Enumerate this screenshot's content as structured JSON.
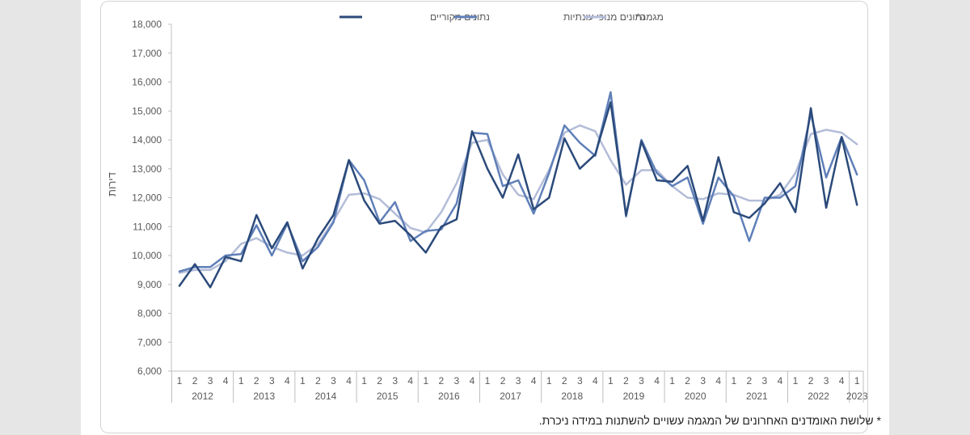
{
  "chart_data": {
    "type": "line",
    "ylabel": "דירות",
    "ylim": [
      6000,
      18000
    ],
    "yticks": [
      "6,000",
      "7,000",
      "8,000",
      "9,000",
      "10,000",
      "11,000",
      "12,000",
      "13,000",
      "14,000",
      "15,000",
      "16,000",
      "17,000",
      "18,000"
    ],
    "years": [
      "2012",
      "2013",
      "2014",
      "2015",
      "2016",
      "2017",
      "2018",
      "2019",
      "2020",
      "2021",
      "2022",
      "2023"
    ],
    "quarter_labels": [
      "1",
      "2",
      "3",
      "4"
    ],
    "legend_position": "top",
    "series": [
      {
        "name": "נתונים מקוריים",
        "color": "#2b4a7a",
        "values": [
          8950,
          9700,
          8900,
          9950,
          9800,
          11400,
          10250,
          11150,
          9550,
          10600,
          11400,
          13300,
          11900,
          11100,
          11200,
          10700,
          10100,
          11000,
          11250,
          14300,
          13000,
          12000,
          13500,
          11600,
          12000,
          14050,
          13000,
          13500,
          15300,
          11400,
          13950,
          12600,
          12550,
          13100,
          11200,
          13400,
          11500,
          11300,
          11800,
          12500,
          11500,
          15100,
          11650,
          14100,
          11750
        ]
      },
      {
        "name": "נתונים מנוכי עונתיות",
        "color": "#5f7fb8",
        "values": [
          9450,
          9600,
          9600,
          10000,
          10050,
          11050,
          10000,
          11100,
          9800,
          10300,
          11150,
          13300,
          12600,
          11150,
          11850,
          10500,
          10850,
          10900,
          11800,
          14250,
          14200,
          12400,
          12600,
          11450,
          12850,
          14500,
          13900,
          13450,
          15650,
          11350,
          14000,
          12850,
          12400,
          12700,
          11100,
          12700,
          12050,
          10500,
          12000,
          12000,
          12400,
          14900,
          12700,
          14100,
          12800
        ]
      },
      {
        "name": "מגמה*",
        "color": "#b3bdd8",
        "values": [
          9400,
          9500,
          9500,
          9800,
          10400,
          10600,
          10300,
          10100,
          10000,
          10400,
          11200,
          12100,
          12150,
          11950,
          11450,
          10950,
          10800,
          11500,
          12500,
          13900,
          14000,
          12800,
          12100,
          11950,
          12950,
          14250,
          14500,
          14300,
          13300,
          12450,
          12950,
          12950,
          12400,
          12000,
          11950,
          12150,
          12100,
          11900,
          11900,
          12100,
          12850,
          14200,
          14350,
          14250,
          13850
        ]
      }
    ],
    "footnote": "* שלושת האומדנים האחרונים של המגמה עשויים להשתנות במידה ניכרת."
  }
}
